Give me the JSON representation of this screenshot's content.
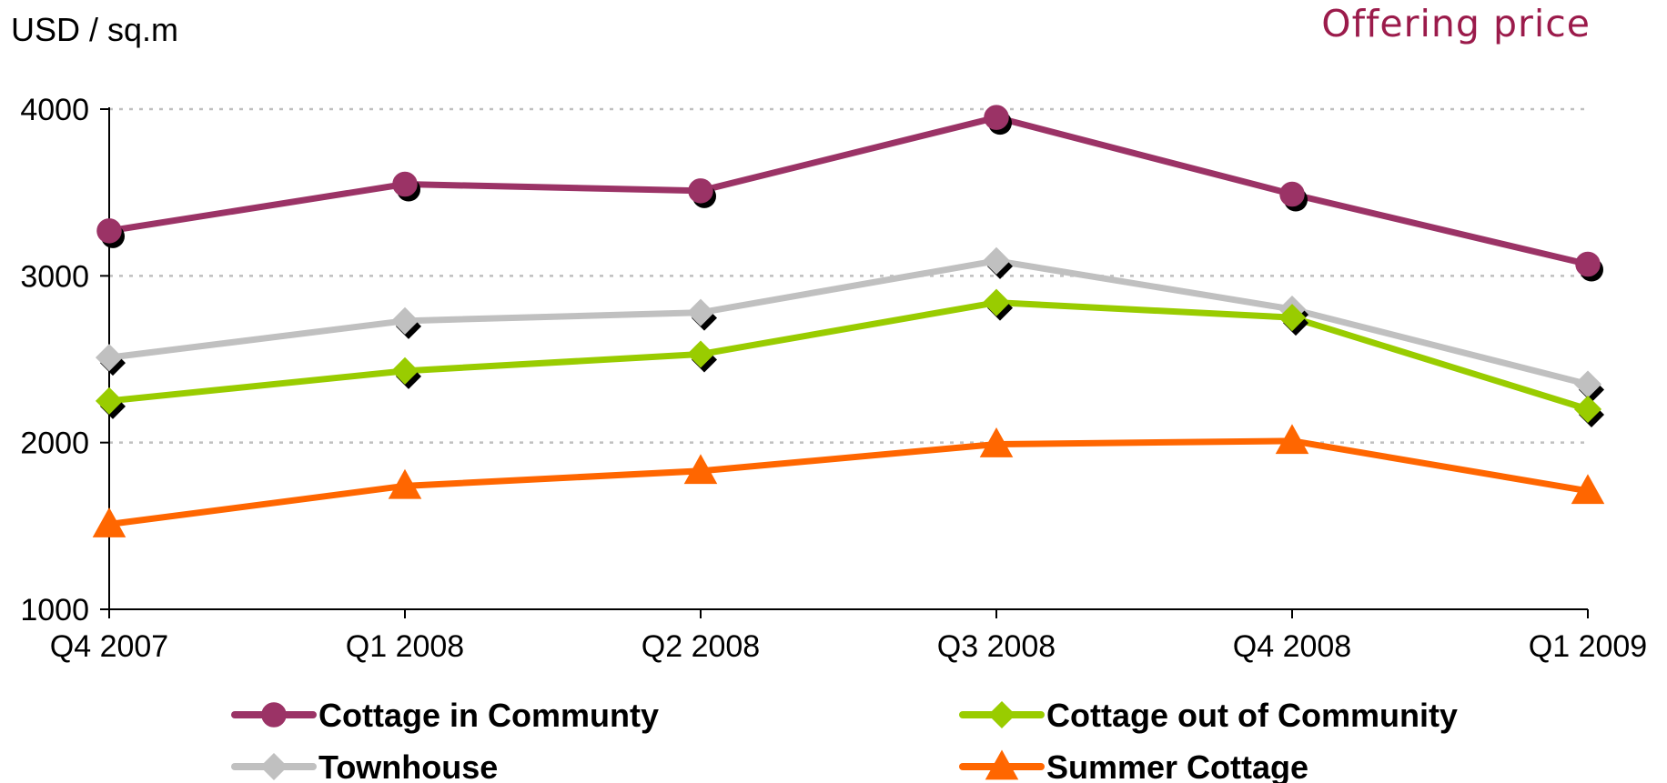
{
  "unit_label": "USD / sq.m",
  "title": "Offering price",
  "colors": {
    "title": "#9B1B4B",
    "axis": "#000000",
    "grid": "#BFBFBF"
  },
  "chart_data": {
    "type": "line",
    "title": "Offering price",
    "ylabel": "USD / sq.m",
    "categories": [
      "Q4 2007",
      "Q1 2008",
      "Q2 2008",
      "Q3 2008",
      "Q4 2008",
      "Q1 2009"
    ],
    "ylim": [
      1000,
      4000
    ],
    "yticks": [
      1000,
      2000,
      3000,
      4000
    ],
    "grid": true,
    "legend_position": "bottom",
    "series": [
      {
        "name": "Cottage in Communty",
        "marker": "circle",
        "color": "#9B3366",
        "values": [
          3270,
          3550,
          3510,
          3950,
          3490,
          3070
        ]
      },
      {
        "name": "Townhouse",
        "marker": "diamond",
        "color": "#C0C0C0",
        "values": [
          2510,
          2730,
          2780,
          3090,
          2800,
          2350
        ]
      },
      {
        "name": "Cottage out of Community",
        "marker": "diamond",
        "color": "#99CC00",
        "values": [
          2250,
          2430,
          2530,
          2840,
          2750,
          2200
        ]
      },
      {
        "name": "Summer Cottage",
        "marker": "triangle",
        "color": "#FF6600",
        "values": [
          1510,
          1740,
          1830,
          1990,
          2010,
          1710
        ]
      }
    ]
  }
}
